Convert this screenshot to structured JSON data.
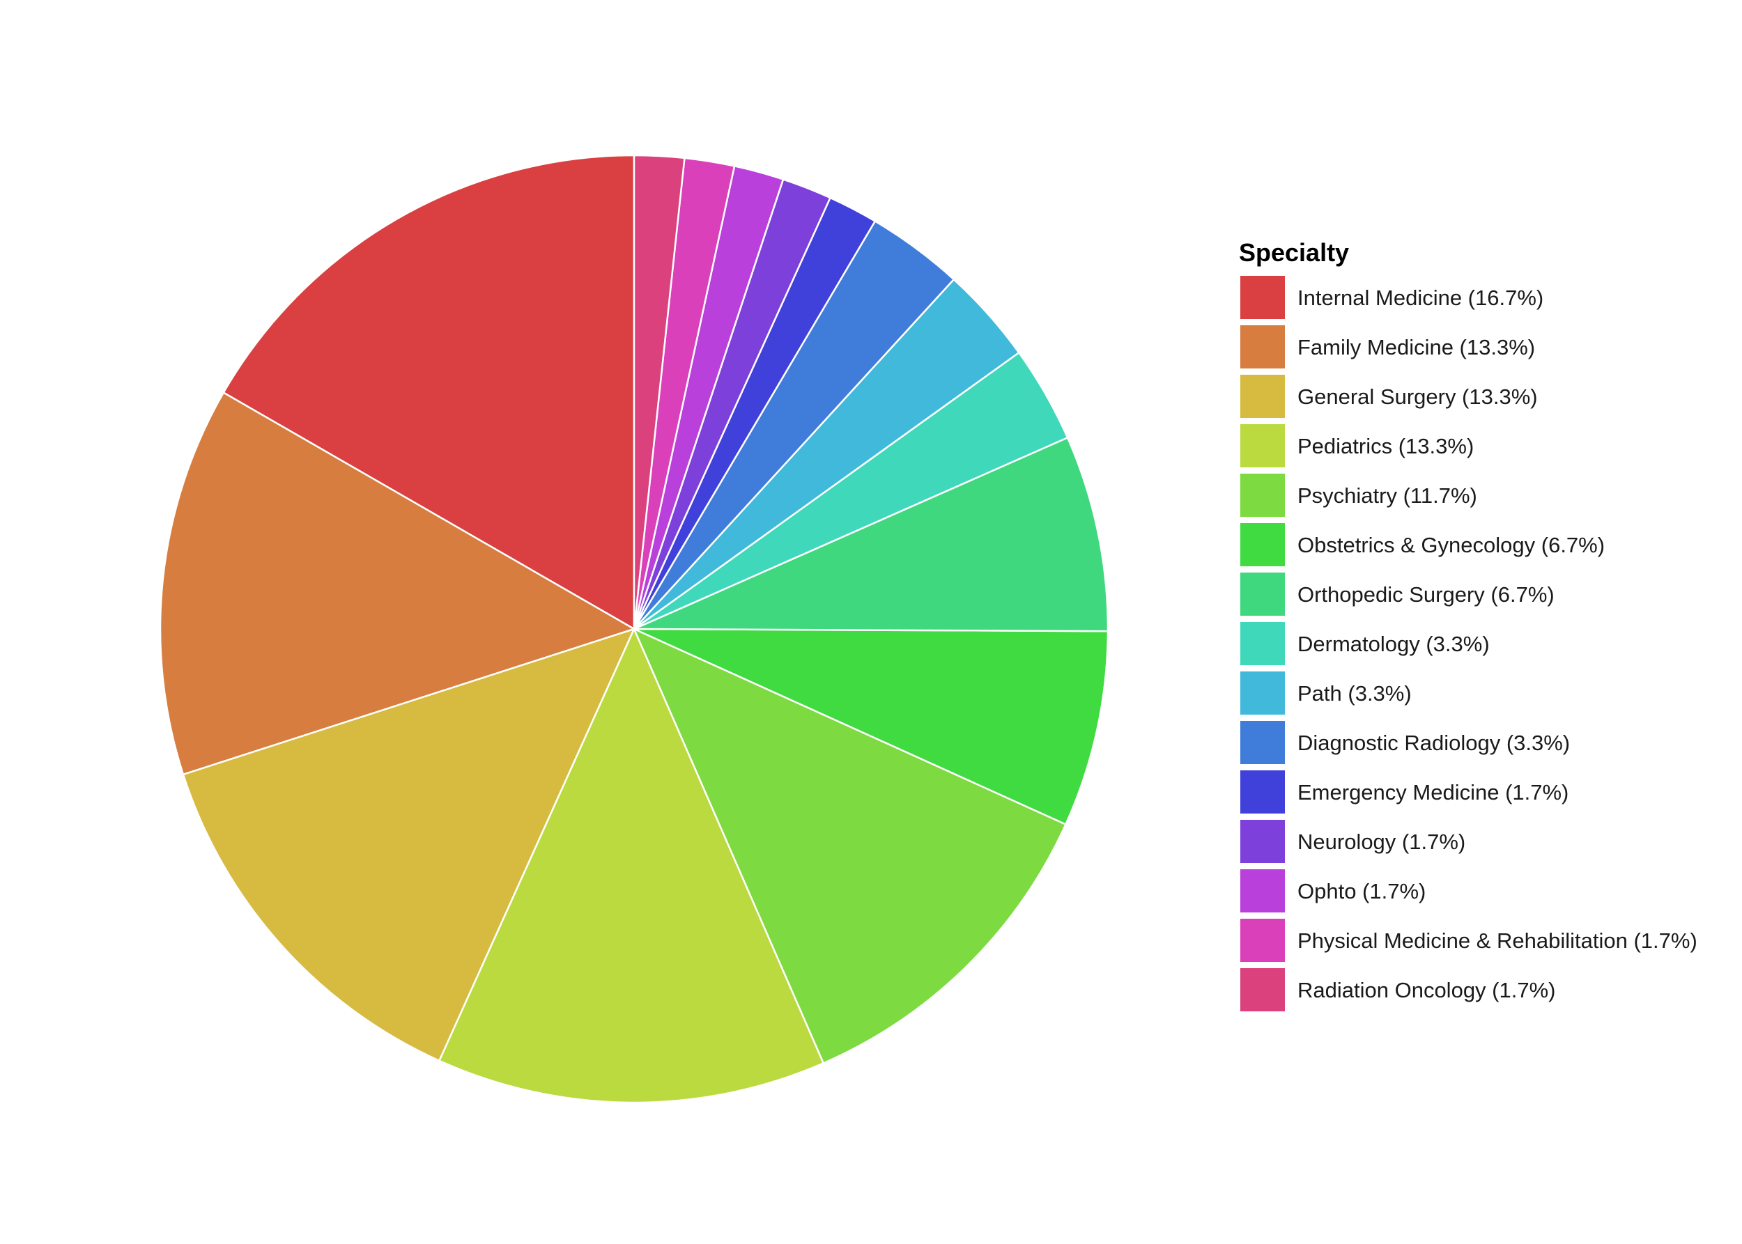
{
  "chart_data": {
    "type": "pie",
    "legend_title": "Specialty",
    "legend_position": "right",
    "start": "top",
    "direction": "counterclockwise",
    "slices": [
      {
        "label": "Internal Medicine (16.7%)",
        "value": 16.7,
        "color": "#da4041"
      },
      {
        "label": "Family Medicine (13.3%)",
        "value": 13.3,
        "color": "#d77d40"
      },
      {
        "label": "General Surgery (13.3%)",
        "value": 13.3,
        "color": "#d7ba40"
      },
      {
        "label": "Pediatrics (13.3%)",
        "value": 13.3,
        "color": "#bada40"
      },
      {
        "label": "Psychiatry (11.7%)",
        "value": 11.7,
        "color": "#7dda40"
      },
      {
        "label": "Obstetrics & Gynecology (6.7%)",
        "value": 6.7,
        "color": "#40da41"
      },
      {
        "label": "Orthopedic Surgery (6.7%)",
        "value": 6.7,
        "color": "#40d87e"
      },
      {
        "label": "Dermatology (3.3%)",
        "value": 3.3,
        "color": "#40d8ba"
      },
      {
        "label": "Path (3.3%)",
        "value": 3.3,
        "color": "#40b9da"
      },
      {
        "label": "Diagnostic Radiology (3.3%)",
        "value": 3.3,
        "color": "#407dda"
      },
      {
        "label": "Emergency Medicine (1.7%)",
        "value": 1.7,
        "color": "#4040da"
      },
      {
        "label": "Neurology (1.7%)",
        "value": 1.7,
        "color": "#7d40da"
      },
      {
        "label": "Ophto (1.7%)",
        "value": 1.7,
        "color": "#b940da"
      },
      {
        "label": "Physical Medicine & Rehabilitation (1.7%)",
        "value": 1.7,
        "color": "#da40ba"
      },
      {
        "label": "Radiation Oncology (1.7%)",
        "value": 1.7,
        "color": "#da417d"
      }
    ]
  }
}
